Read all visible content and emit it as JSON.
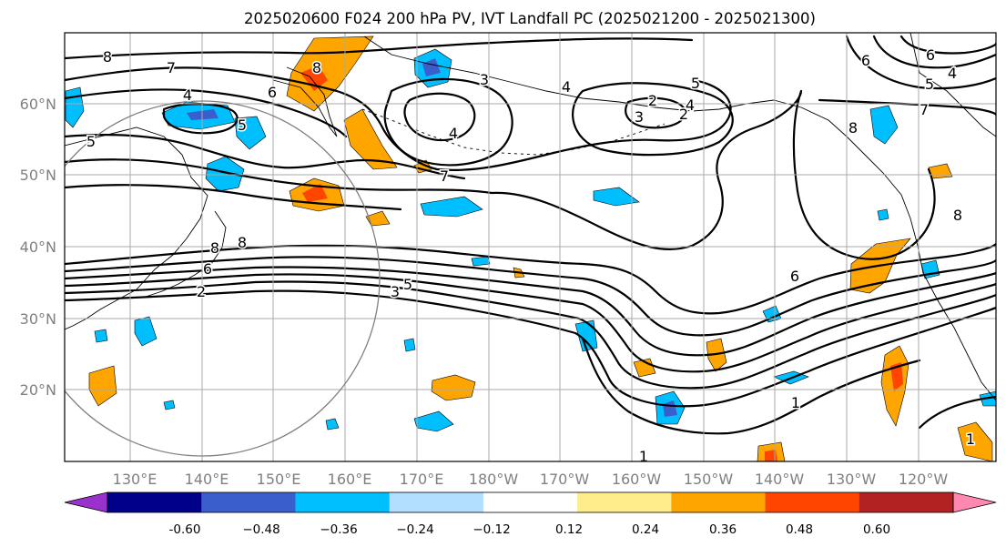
{
  "title": "2025020600 F024 200 hPa PV, IVT Landfall PC (2025021200 - 2025021300)",
  "lon_ticks": [
    "130°E",
    "140°E",
    "150°E",
    "160°E",
    "170°E",
    "180°W",
    "170°W",
    "160°W",
    "150°W",
    "140°W",
    "130°W",
    "120°W"
  ],
  "lat_ticks": [
    "60°N",
    "50°N",
    "40°N",
    "30°N",
    "20°N"
  ],
  "colorbar": {
    "tick_labels": [
      "-0.60",
      "−0.48",
      "−0.36",
      "−0.24",
      "−0.12",
      "0.12",
      "0.24",
      "0.36",
      "0.48",
      "0.60"
    ],
    "colors": [
      "#9932cc",
      "#00008b",
      "#3a5fcd",
      "#00bfff",
      "#b2dfff",
      "#ffffff",
      "#ffec8b",
      "#ffa500",
      "#ff4500",
      "#b22222",
      "#ff88b0"
    ]
  },
  "contour_labels": [
    "8",
    "7",
    "6",
    "5",
    "4",
    "5",
    "8",
    "4",
    "4",
    "3",
    "2",
    "3",
    "5",
    "2",
    "4",
    "7",
    "8",
    "8",
    "6",
    "2",
    "3",
    "5",
    "6",
    "6",
    "8",
    "6",
    "5",
    "4",
    "7",
    "8",
    "1",
    "1",
    "1"
  ]
}
